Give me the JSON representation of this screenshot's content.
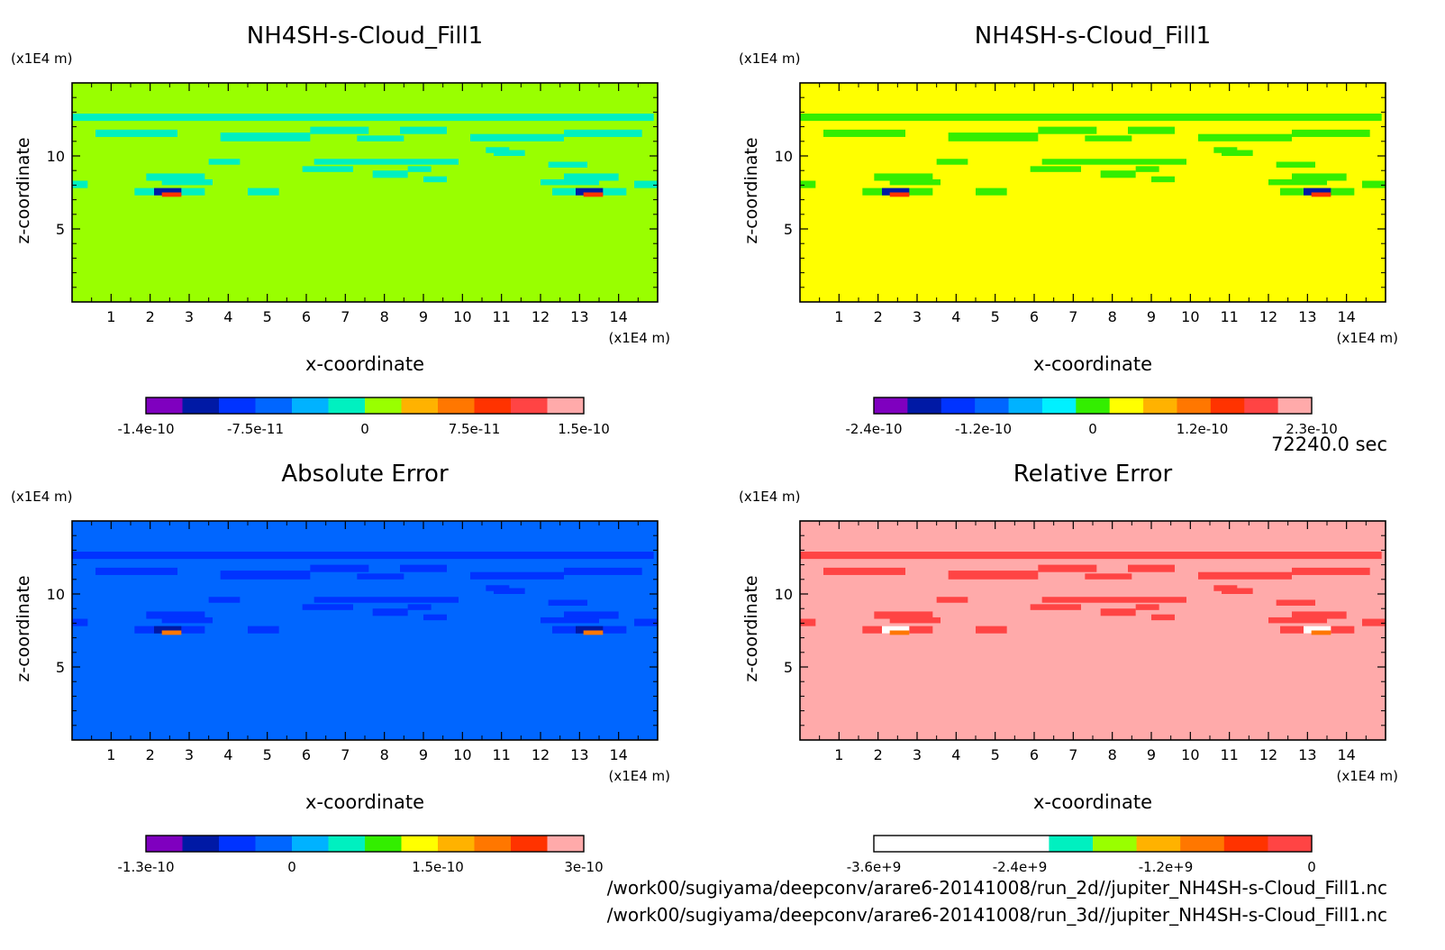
{
  "time_label": "72240.0 sec",
  "file_lines": [
    "/work00/sugiyama/deepconv/arare6-20141008/run_2d//jupiter_NH4SH-s-Cloud_Fill1.nc",
    "/work00/sugiyama/deepconv/arare6-20141008/run_3d//jupiter_NH4SH-s-Cloud_Fill1.nc"
  ],
  "colors": {
    "rainbow": [
      "#7f00bf",
      "#0019a5",
      "#0033ff",
      "#0066ff",
      "#00b2ff",
      "#00f0c0",
      "#99ff00",
      "#ffff00",
      "#ffb200",
      "#ff7700",
      "#ff3300",
      "#ff4444",
      "#ffaaaa"
    ]
  },
  "chart_data": [
    {
      "type": "heatmap",
      "title": "NH4SH-s-Cloud_Fill1",
      "xlabel": "x-coordinate",
      "ylabel": "z-coordinate",
      "x_unit": "(x1E4 m)",
      "y_unit": "(x1E4 m)",
      "xlim": [
        0,
        15
      ],
      "ylim": [
        0,
        15
      ],
      "xticks": [
        "1",
        "2",
        "3",
        "4",
        "5",
        "6",
        "7",
        "8",
        "9",
        "10",
        "11",
        "12",
        "13",
        "14"
      ],
      "yticks": [
        "5",
        "10"
      ],
      "background_color": "#99ff00",
      "feature_color": "#00f0c0",
      "colorbar": {
        "colors": [
          "#7f00bf",
          "#0019a5",
          "#0033ff",
          "#0066ff",
          "#00b2ff",
          "#00f0c0",
          "#99ff00",
          "#ffb200",
          "#ff7700",
          "#ff3300",
          "#ff4444",
          "#ffaaaa"
        ],
        "ticks": [
          "-1.4e-10",
          "-7.5e-11",
          "0",
          "7.5e-11",
          "1.5e-10"
        ]
      }
    },
    {
      "type": "heatmap",
      "title": "NH4SH-s-Cloud_Fill1",
      "xlabel": "x-coordinate",
      "ylabel": "z-coordinate",
      "x_unit": "(x1E4 m)",
      "y_unit": "(x1E4 m)",
      "xlim": [
        0,
        15
      ],
      "ylim": [
        0,
        15
      ],
      "xticks": [
        "1",
        "2",
        "3",
        "4",
        "5",
        "6",
        "7",
        "8",
        "9",
        "10",
        "11",
        "12",
        "13",
        "14"
      ],
      "yticks": [
        "5",
        "10"
      ],
      "background_color": "#ffff00",
      "feature_color": "#33ee00",
      "colorbar": {
        "colors": [
          "#7f00bf",
          "#0019a5",
          "#0033ff",
          "#0066ff",
          "#00b2ff",
          "#00f0ff",
          "#33ee00",
          "#ffff00",
          "#ffb200",
          "#ff7700",
          "#ff3300",
          "#ff4444",
          "#ffaaaa"
        ],
        "ticks": [
          "-2.4e-10",
          "-1.2e-10",
          "0",
          "1.2e-10",
          "2.3e-10"
        ]
      }
    },
    {
      "type": "heatmap",
      "title": "Absolute Error",
      "xlabel": "x-coordinate",
      "ylabel": "z-coordinate",
      "x_unit": "(x1E4 m)",
      "y_unit": "(x1E4 m)",
      "xlim": [
        0,
        15
      ],
      "ylim": [
        0,
        15
      ],
      "xticks": [
        "1",
        "2",
        "3",
        "4",
        "5",
        "6",
        "7",
        "8",
        "9",
        "10",
        "11",
        "12",
        "13",
        "14"
      ],
      "yticks": [
        "5",
        "10"
      ],
      "background_color": "#0066ff",
      "feature_color": "#0033ff",
      "colorbar": {
        "colors": [
          "#7f00bf",
          "#0019a5",
          "#0033ff",
          "#0066ff",
          "#00b2ff",
          "#00f0c0",
          "#33ee00",
          "#ffff00",
          "#ffb200",
          "#ff7700",
          "#ff3300",
          "#ffaaaa"
        ],
        "ticks": [
          "-1.3e-10",
          "0",
          "1.5e-10",
          "3e-10"
        ]
      }
    },
    {
      "type": "heatmap",
      "title": "Relative Error",
      "xlabel": "x-coordinate",
      "ylabel": "z-coordinate",
      "x_unit": "(x1E4 m)",
      "y_unit": "(x1E4 m)",
      "xlim": [
        0,
        15
      ],
      "ylim": [
        0,
        15
      ],
      "xticks": [
        "1",
        "2",
        "3",
        "4",
        "5",
        "6",
        "7",
        "8",
        "9",
        "10",
        "11",
        "12",
        "13",
        "14"
      ],
      "yticks": [
        "5",
        "10"
      ],
      "background_color": "#ffaaaa",
      "feature_color": "#ff4444",
      "colorbar": {
        "colors": [
          "#ffffff",
          "#ffffff",
          "#ffffff",
          "#ffffff",
          "#00f0c0",
          "#99ff00",
          "#ffb200",
          "#ff7700",
          "#ff3300",
          "#ff4444"
        ],
        "ticks": [
          "-3.6e+9",
          "-2.4e+9",
          "-1.2e+9",
          "0"
        ]
      }
    }
  ]
}
